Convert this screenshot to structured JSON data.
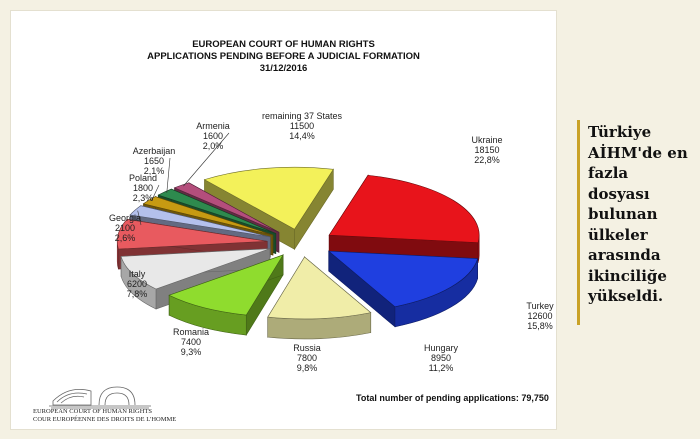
{
  "chart_data": {
    "type": "pie",
    "title": "EUROPEAN COURT OF HUMAN RIGHTS",
    "subtitle": "APPLICATIONS PENDING BEFORE A JUDICIAL FORMATION",
    "date": "31/12/2016",
    "slices": [
      {
        "label": "Ukraine",
        "value": 18150,
        "value_text": "18150",
        "percent_text": "22,8%",
        "color": "#e8141b"
      },
      {
        "label": "Turkey",
        "value": 12600,
        "value_text": "12600",
        "percent_text": "15,8%",
        "color": "#1f3fe0"
      },
      {
        "label": "Hungary",
        "value": 8950,
        "value_text": "8950",
        "percent_text": "11,2%",
        "color": "#f0eda8"
      },
      {
        "label": "Russia",
        "value": 7800,
        "value_text": "7800",
        "percent_text": "9,8%",
        "color": "#8fdc2e"
      },
      {
        "label": "Romania",
        "value": 7400,
        "value_text": "7400",
        "percent_text": "9,3%",
        "color": "#e8e8e8"
      },
      {
        "label": "Italy",
        "value": 6200,
        "value_text": "6200",
        "percent_text": "7,8%",
        "color": "#e85a5f"
      },
      {
        "label": "Georgia",
        "value": 2100,
        "value_text": "2100",
        "percent_text": "2,6%",
        "color": "#b4c0ec"
      },
      {
        "label": "Poland",
        "value": 1800,
        "value_text": "1800",
        "percent_text": "2,3%",
        "color": "#c69a12"
      },
      {
        "label": "Azerbaijan",
        "value": 1650,
        "value_text": "1650",
        "percent_text": "2,1%",
        "color": "#2e8a4e"
      },
      {
        "label": "Armenia",
        "value": 1600,
        "value_text": "1600",
        "percent_text": "2,0%",
        "color": "#b44e7c"
      },
      {
        "label": "remaining 37 States",
        "value": 11500,
        "value_text": "11500",
        "percent_text": "14,4%",
        "color": "#f3f15a"
      }
    ],
    "total_label": "Total number of pending applications:  79,750",
    "legend": "none"
  },
  "logo": {
    "line1": "EUROPEAN COURT OF HUMAN RIGHTS",
    "line2": "COUR EUROPÉENNE DES DROITS DE L'HOMME"
  },
  "callout": {
    "text": "Türkiye AİHM'de en fazla dosyası bulunan ülkeler arasında ikinciliğe yükseldi."
  }
}
